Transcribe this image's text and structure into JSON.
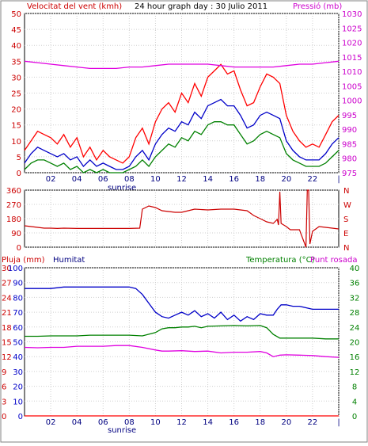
{
  "chart_data": [
    {
      "type": "line",
      "title": "24 hour graph day : 30 Julio 2011",
      "left_axis_label": "Velocitat del vent (kmh)",
      "right_axis_label": "Pressió (mb)",
      "x_ticks": [
        "02",
        "04",
        "06",
        "08",
        "10",
        "12",
        "14",
        "16",
        "18",
        "20",
        "22",
        "|"
      ],
      "x_note": "sunrise",
      "x_range": [
        0,
        24
      ],
      "y_left": {
        "ticks": [
          0,
          5,
          10,
          15,
          20,
          25,
          30,
          35,
          40,
          45,
          50
        ],
        "range": [
          0,
          50
        ]
      },
      "y_right": {
        "ticks": [
          975,
          980,
          985,
          990,
          995,
          1000,
          1005,
          1010,
          1015,
          1020,
          1025,
          1030
        ],
        "range": [
          975,
          1030
        ]
      },
      "colors": {
        "gust": "#ff0000",
        "avg": "#0000c8",
        "min": "#008000",
        "pressure": "#e000e0"
      },
      "series": [
        {
          "key": "gust",
          "axis": "left",
          "x": [
            0,
            0.5,
            1,
            1.5,
            2,
            2.5,
            3,
            3.5,
            4,
            4.5,
            5,
            5.5,
            6,
            6.5,
            7,
            7.5,
            8,
            8.5,
            9,
            9.5,
            10,
            10.5,
            11,
            11.5,
            12,
            12.5,
            13,
            13.5,
            14,
            14.5,
            15,
            15.5,
            16,
            16.5,
            17,
            17.5,
            18,
            18.5,
            19,
            19.5,
            20,
            20.5,
            21,
            21.5,
            22,
            22.5,
            23,
            23.5,
            24
          ],
          "values": [
            7,
            10,
            13,
            12,
            11,
            9,
            12,
            8,
            11,
            5,
            8,
            4,
            7,
            5,
            4,
            3,
            5,
            11,
            14,
            9,
            16,
            20,
            22,
            19,
            25,
            22,
            28,
            24,
            30,
            32,
            34,
            31,
            32,
            26,
            21,
            22,
            27,
            31,
            30,
            28,
            18,
            13,
            10,
            8,
            9,
            8,
            12,
            16,
            18
          ]
        },
        {
          "key": "avg",
          "axis": "left",
          "x": [
            0,
            0.5,
            1,
            1.5,
            2,
            2.5,
            3,
            3.5,
            4,
            4.5,
            5,
            5.5,
            6,
            6.5,
            7,
            7.5,
            8,
            8.5,
            9,
            9.5,
            10,
            10.5,
            11,
            11.5,
            12,
            12.5,
            13,
            13.5,
            14,
            14.5,
            15,
            15.5,
            16,
            16.5,
            17,
            17.5,
            18,
            18.5,
            19,
            19.5,
            20,
            20.5,
            21,
            21.5,
            22,
            22.5,
            23,
            23.5,
            24
          ],
          "values": [
            3,
            6,
            8,
            7,
            6,
            5,
            6,
            4,
            5,
            2,
            4,
            2,
            3,
            2,
            1,
            1,
            2,
            5,
            7,
            4,
            9,
            12,
            14,
            13,
            16,
            15,
            19,
            17,
            21,
            22,
            23,
            21,
            21,
            18,
            14,
            15,
            18,
            19,
            18,
            17,
            10,
            7,
            5,
            4,
            4,
            4,
            6,
            9,
            11
          ]
        },
        {
          "key": "min",
          "axis": "left",
          "x": [
            0,
            0.5,
            1,
            1.5,
            2,
            2.5,
            3,
            3.5,
            4,
            4.5,
            5,
            5.5,
            6,
            6.5,
            7,
            7.5,
            8,
            8.5,
            9,
            9.5,
            10,
            10.5,
            11,
            11.5,
            12,
            12.5,
            13,
            13.5,
            14,
            14.5,
            15,
            15.5,
            16,
            16.5,
            17,
            17.5,
            18,
            18.5,
            19,
            19.5,
            20,
            20.5,
            21,
            21.5,
            22,
            22.5,
            23,
            23.5,
            24
          ],
          "values": [
            1,
            3,
            4,
            4,
            3,
            2,
            3,
            1,
            2,
            0,
            1,
            0,
            1,
            0,
            0,
            0,
            1,
            2,
            4,
            2,
            5,
            7,
            9,
            8,
            11,
            10,
            13,
            12,
            15,
            16,
            16,
            15,
            15,
            12,
            9,
            10,
            12,
            13,
            12,
            11,
            6,
            4,
            3,
            2,
            2,
            2,
            3,
            5,
            7
          ]
        },
        {
          "key": "pressure",
          "axis": "right",
          "x": [
            0,
            1,
            2,
            3,
            4,
            5,
            6,
            7,
            8,
            9,
            10,
            11,
            12,
            13,
            14,
            15,
            16,
            17,
            18,
            19,
            20,
            21,
            22,
            23,
            24
          ],
          "values": [
            1013.5,
            1013,
            1012.5,
            1012,
            1011.5,
            1011,
            1011,
            1011,
            1011.5,
            1011.5,
            1012,
            1012.5,
            1012.5,
            1012.5,
            1012.5,
            1012,
            1011.5,
            1011.5,
            1011.5,
            1011.5,
            1012,
            1012.5,
            1012.5,
            1013,
            1013.5
          ]
        }
      ]
    },
    {
      "type": "line",
      "left_ticks": [
        0,
        90,
        180,
        270,
        360
      ],
      "y_range": [
        0,
        360
      ],
      "right_labels": [
        "N",
        "W",
        "S",
        "E",
        "N"
      ],
      "x_range": [
        0,
        24
      ],
      "color": "#cc0000",
      "series": [
        {
          "key": "direction",
          "x": [
            0,
            0.5,
            1,
            1.5,
            2,
            2.5,
            3,
            4,
            5,
            6,
            7,
            8,
            8.8,
            9,
            9.5,
            10,
            10.5,
            11,
            11.5,
            12,
            13,
            14,
            15,
            16,
            17,
            17.5,
            18,
            18.5,
            19,
            19.3,
            19.4,
            19.5,
            19.6,
            19.8,
            20,
            20.3,
            20.6,
            21,
            21.5,
            21.6,
            21.7,
            21.8,
            22,
            22.5,
            23,
            23.5,
            24
          ],
          "values": [
            135,
            130,
            125,
            120,
            120,
            118,
            120,
            118,
            118,
            118,
            118,
            118,
            120,
            240,
            260,
            250,
            230,
            225,
            220,
            220,
            240,
            235,
            240,
            240,
            230,
            200,
            180,
            160,
            150,
            175,
            140,
            350,
            150,
            140,
            130,
            110,
            110,
            110,
            0,
            360,
            360,
            20,
            100,
            130,
            125,
            120,
            115
          ]
        }
      ]
    },
    {
      "type": "line",
      "labels": {
        "rain": "Pluja (mm)",
        "humidity": "Humitat",
        "temperature": "Temperatura (°C)",
        "dewpoint": "Punt rosada"
      },
      "x_ticks": [
        "02",
        "04",
        "06",
        "08",
        "10",
        "12",
        "14",
        "16",
        "18",
        "20",
        "22",
        "|"
      ],
      "x_note": "sunrise",
      "x_range": [
        0,
        24
      ],
      "y_rain": {
        "ticks": [
          0,
          3,
          6,
          9,
          12,
          15,
          18,
          21,
          24,
          27,
          30
        ],
        "range": [
          0,
          30
        ]
      },
      "y_humidity": {
        "ticks": [
          0,
          10,
          20,
          30,
          40,
          50,
          60,
          70,
          80,
          90,
          100
        ],
        "range": [
          0,
          100
        ]
      },
      "y_temp": {
        "ticks": [
          0,
          4,
          8,
          12,
          16,
          20,
          24,
          28,
          32,
          36,
          40
        ],
        "range": [
          0,
          40
        ]
      },
      "colors": {
        "rain": "#ff0000",
        "humidity": "#0000c8",
        "temperature": "#008000",
        "dewpoint": "#e000e0"
      },
      "series": [
        {
          "key": "rain",
          "axis": "rain",
          "x": [
            0,
            24
          ],
          "values": [
            0,
            0
          ]
        },
        {
          "key": "humidity",
          "axis": "humidity",
          "x": [
            0,
            1,
            2,
            3,
            4,
            5,
            6,
            7,
            8,
            8.5,
            9,
            9.5,
            10,
            10.5,
            11,
            11.5,
            12,
            12.5,
            13,
            13.5,
            14,
            14.5,
            15,
            15.5,
            16,
            16.5,
            17,
            17.5,
            18,
            18.5,
            19,
            19.3,
            19.6,
            20,
            20.5,
            21,
            22,
            23,
            24
          ],
          "values": [
            86,
            86,
            86,
            87,
            87,
            87,
            87,
            87,
            87,
            86,
            82,
            76,
            70,
            67,
            66,
            68,
            70,
            68,
            71,
            67,
            69,
            66,
            70,
            65,
            68,
            64,
            67,
            65,
            69,
            68,
            68,
            72,
            75,
            75,
            74,
            74,
            72,
            72,
            72
          ],
          "stroke_vs_paper": "humidity"
        },
        {
          "key": "temperature",
          "axis": "temp",
          "x": [
            0,
            1,
            2,
            3,
            4,
            5,
            6,
            7,
            8,
            9,
            10,
            10.5,
            11,
            11.5,
            12,
            12.5,
            13,
            13.5,
            14,
            15,
            16,
            17,
            18,
            18.5,
            19,
            19.5,
            20,
            21,
            22,
            23,
            24
          ],
          "values": [
            21.5,
            21.5,
            21.6,
            21.6,
            21.6,
            21.8,
            21.8,
            21.8,
            21.8,
            21.6,
            22.5,
            23.5,
            23.8,
            23.8,
            24.0,
            24.0,
            24.2,
            23.8,
            24.2,
            24.3,
            24.4,
            24.3,
            24.4,
            23.8,
            22,
            21,
            21,
            21,
            21,
            20.8,
            20.8
          ]
        },
        {
          "key": "dewpoint",
          "axis": "temp",
          "x": [
            0,
            1,
            2,
            3,
            4,
            5,
            6,
            7,
            8,
            9,
            10,
            10.5,
            11,
            12,
            13,
            14,
            15,
            16,
            17,
            18,
            18.5,
            19,
            19.5,
            20,
            21,
            22,
            23,
            24
          ],
          "values": [
            18.5,
            18.4,
            18.5,
            18.5,
            18.8,
            18.8,
            18.8,
            19.0,
            19.0,
            18.5,
            17.8,
            17.5,
            17.5,
            17.6,
            17.4,
            17.5,
            17.0,
            17.2,
            17.2,
            17.4,
            17.0,
            16.0,
            16.4,
            16.5,
            16.4,
            16.3,
            16.0,
            15.8
          ]
        }
      ]
    }
  ]
}
